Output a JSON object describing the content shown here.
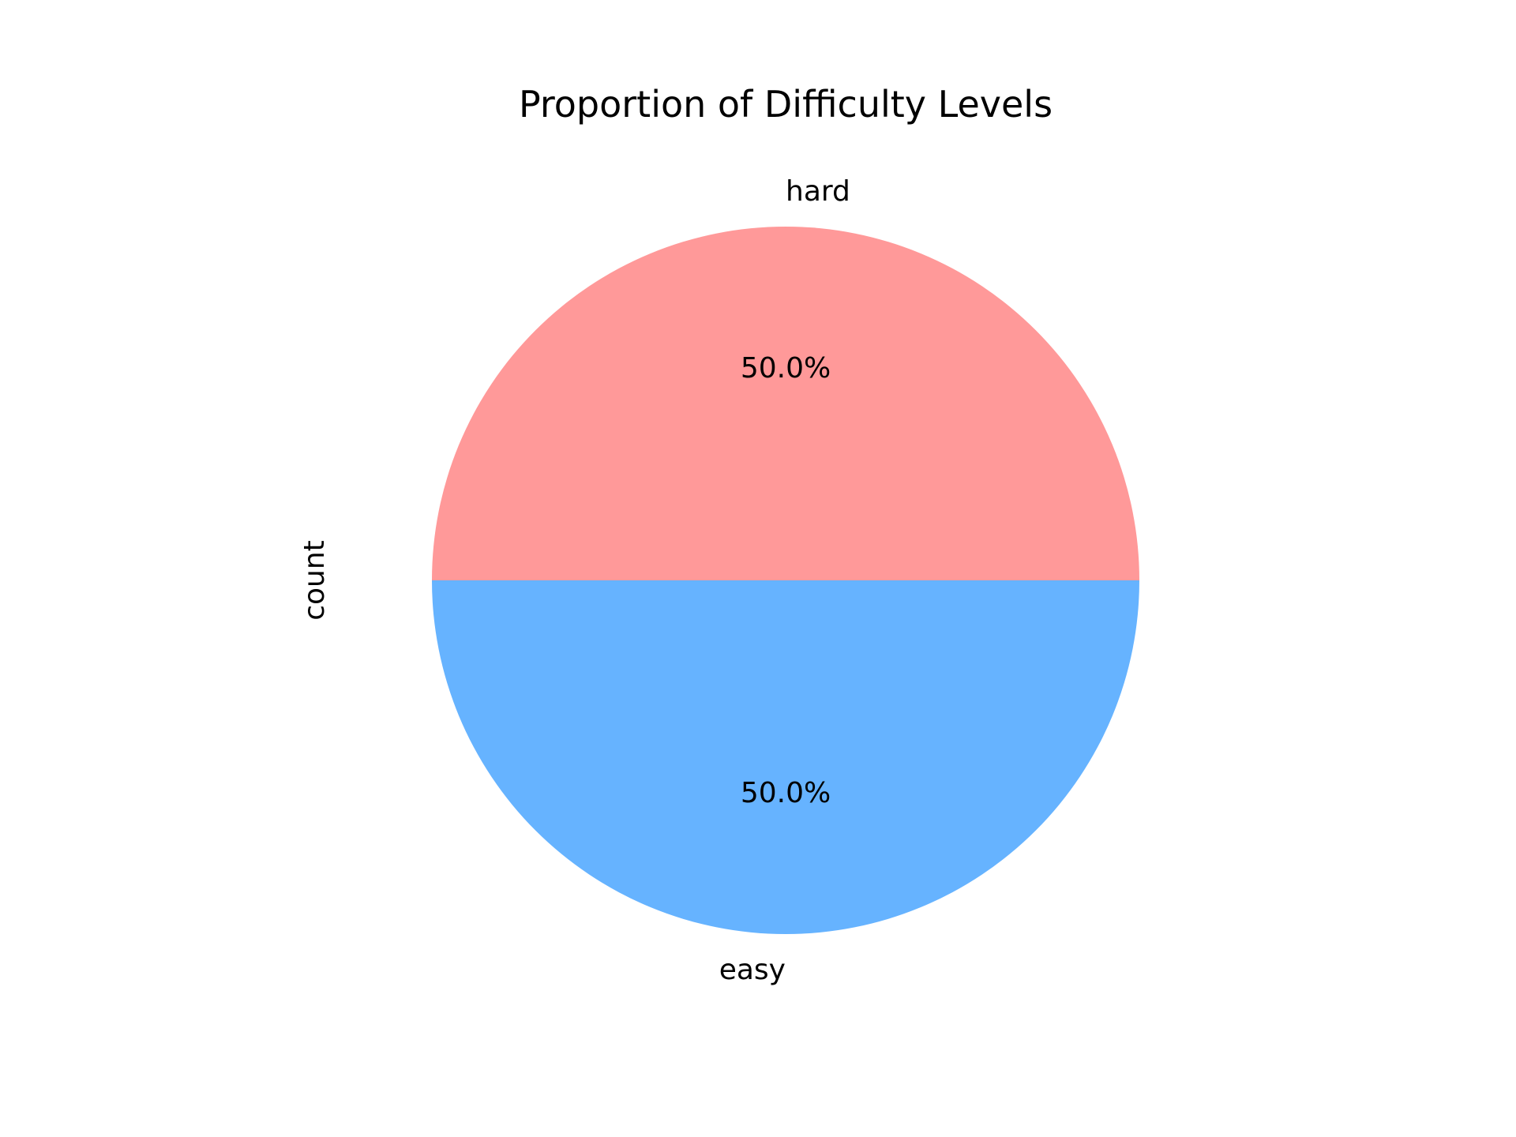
{
  "chart_data": {
    "type": "pie",
    "title": "Proportion of Difficulty Levels",
    "ylabel": "count",
    "xlabel": "",
    "slices": [
      {
        "label": "hard",
        "value": 50.0,
        "pct_label": "50.0%",
        "color": "#ff9999"
      },
      {
        "label": "easy",
        "value": 50.0,
        "pct_label": "50.0%",
        "color": "#66b3ff"
      }
    ],
    "start_angle": 0,
    "counterclock": true,
    "legend": "none"
  }
}
